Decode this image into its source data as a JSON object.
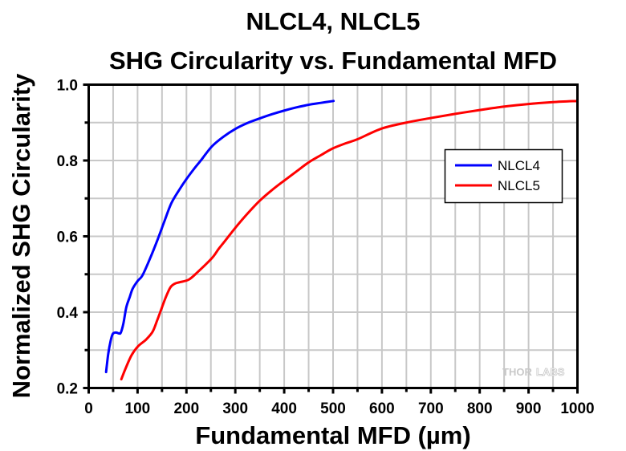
{
  "chart_data": {
    "type": "line",
    "title": "NLCL4, NLCL5",
    "subtitle": "SHG Circularity vs. Fundamental MFD",
    "xlabel": "Fundamental MFD (µm)",
    "ylabel": "Normalized SHG Circularity",
    "xlim": [
      0,
      1000
    ],
    "ylim": [
      0.2,
      1.0
    ],
    "xticks": [
      0,
      100,
      200,
      300,
      400,
      500,
      600,
      700,
      800,
      900,
      1000
    ],
    "xtick_labels": [
      "0",
      "100",
      "200",
      "300",
      "400",
      "500",
      "600",
      "700",
      "800",
      "900",
      "1000"
    ],
    "xminor_step": 50,
    "yticks": [
      0.2,
      0.4,
      0.6,
      0.8,
      1.0
    ],
    "ytick_labels": [
      "0.2",
      "0.4",
      "0.6",
      "0.8",
      "1.0"
    ],
    "yminor_step": 0.1,
    "grid": true,
    "legend": {
      "position": "right-center",
      "entries": [
        "NLCL4",
        "NLCL5"
      ]
    },
    "watermark": {
      "part1": "THOR",
      "part2": "LABS"
    },
    "series": [
      {
        "name": "NLCL4",
        "color": "#0000ff",
        "x": [
          35.6,
          40,
          45,
          49,
          53,
          57.5,
          62,
          65.7,
          71,
          77,
          84,
          90,
          100,
          110,
          125,
          140,
          155,
          169,
          185,
          200,
          215,
          230,
          252,
          275,
          301,
          325,
          350,
          375,
          401,
          425,
          450,
          475,
          501
        ],
        "y": [
          0.242,
          0.29,
          0.325,
          0.342,
          0.346,
          0.346,
          0.344,
          0.346,
          0.37,
          0.413,
          0.44,
          0.462,
          0.482,
          0.497,
          0.54,
          0.588,
          0.64,
          0.687,
          0.722,
          0.751,
          0.777,
          0.801,
          0.837,
          0.862,
          0.884,
          0.899,
          0.911,
          0.922,
          0.932,
          0.94,
          0.947,
          0.952,
          0.957
        ]
      },
      {
        "name": "NLCL5",
        "color": "#ff0000",
        "x": [
          66.8,
          75,
          87.5,
          101,
          117.6,
          131,
          140,
          147.8,
          157,
          167,
          176,
          186,
          205,
          224,
          251.8,
          266,
          279,
          301,
          325,
          350,
          375,
          399,
          425,
          450,
          475,
          498,
          525,
          550,
          599,
          650,
          700,
          750,
          800,
          849,
          900,
          950,
          999
        ],
        "y": [
          0.223,
          0.25,
          0.286,
          0.31,
          0.328,
          0.349,
          0.378,
          0.405,
          0.437,
          0.465,
          0.475,
          0.479,
          0.486,
          0.507,
          0.542,
          0.567,
          0.588,
          0.624,
          0.66,
          0.694,
          0.722,
          0.746,
          0.771,
          0.795,
          0.814,
          0.831,
          0.845,
          0.856,
          0.884,
          0.9,
          0.912,
          0.923,
          0.933,
          0.942,
          0.949,
          0.954,
          0.957
        ]
      }
    ]
  }
}
